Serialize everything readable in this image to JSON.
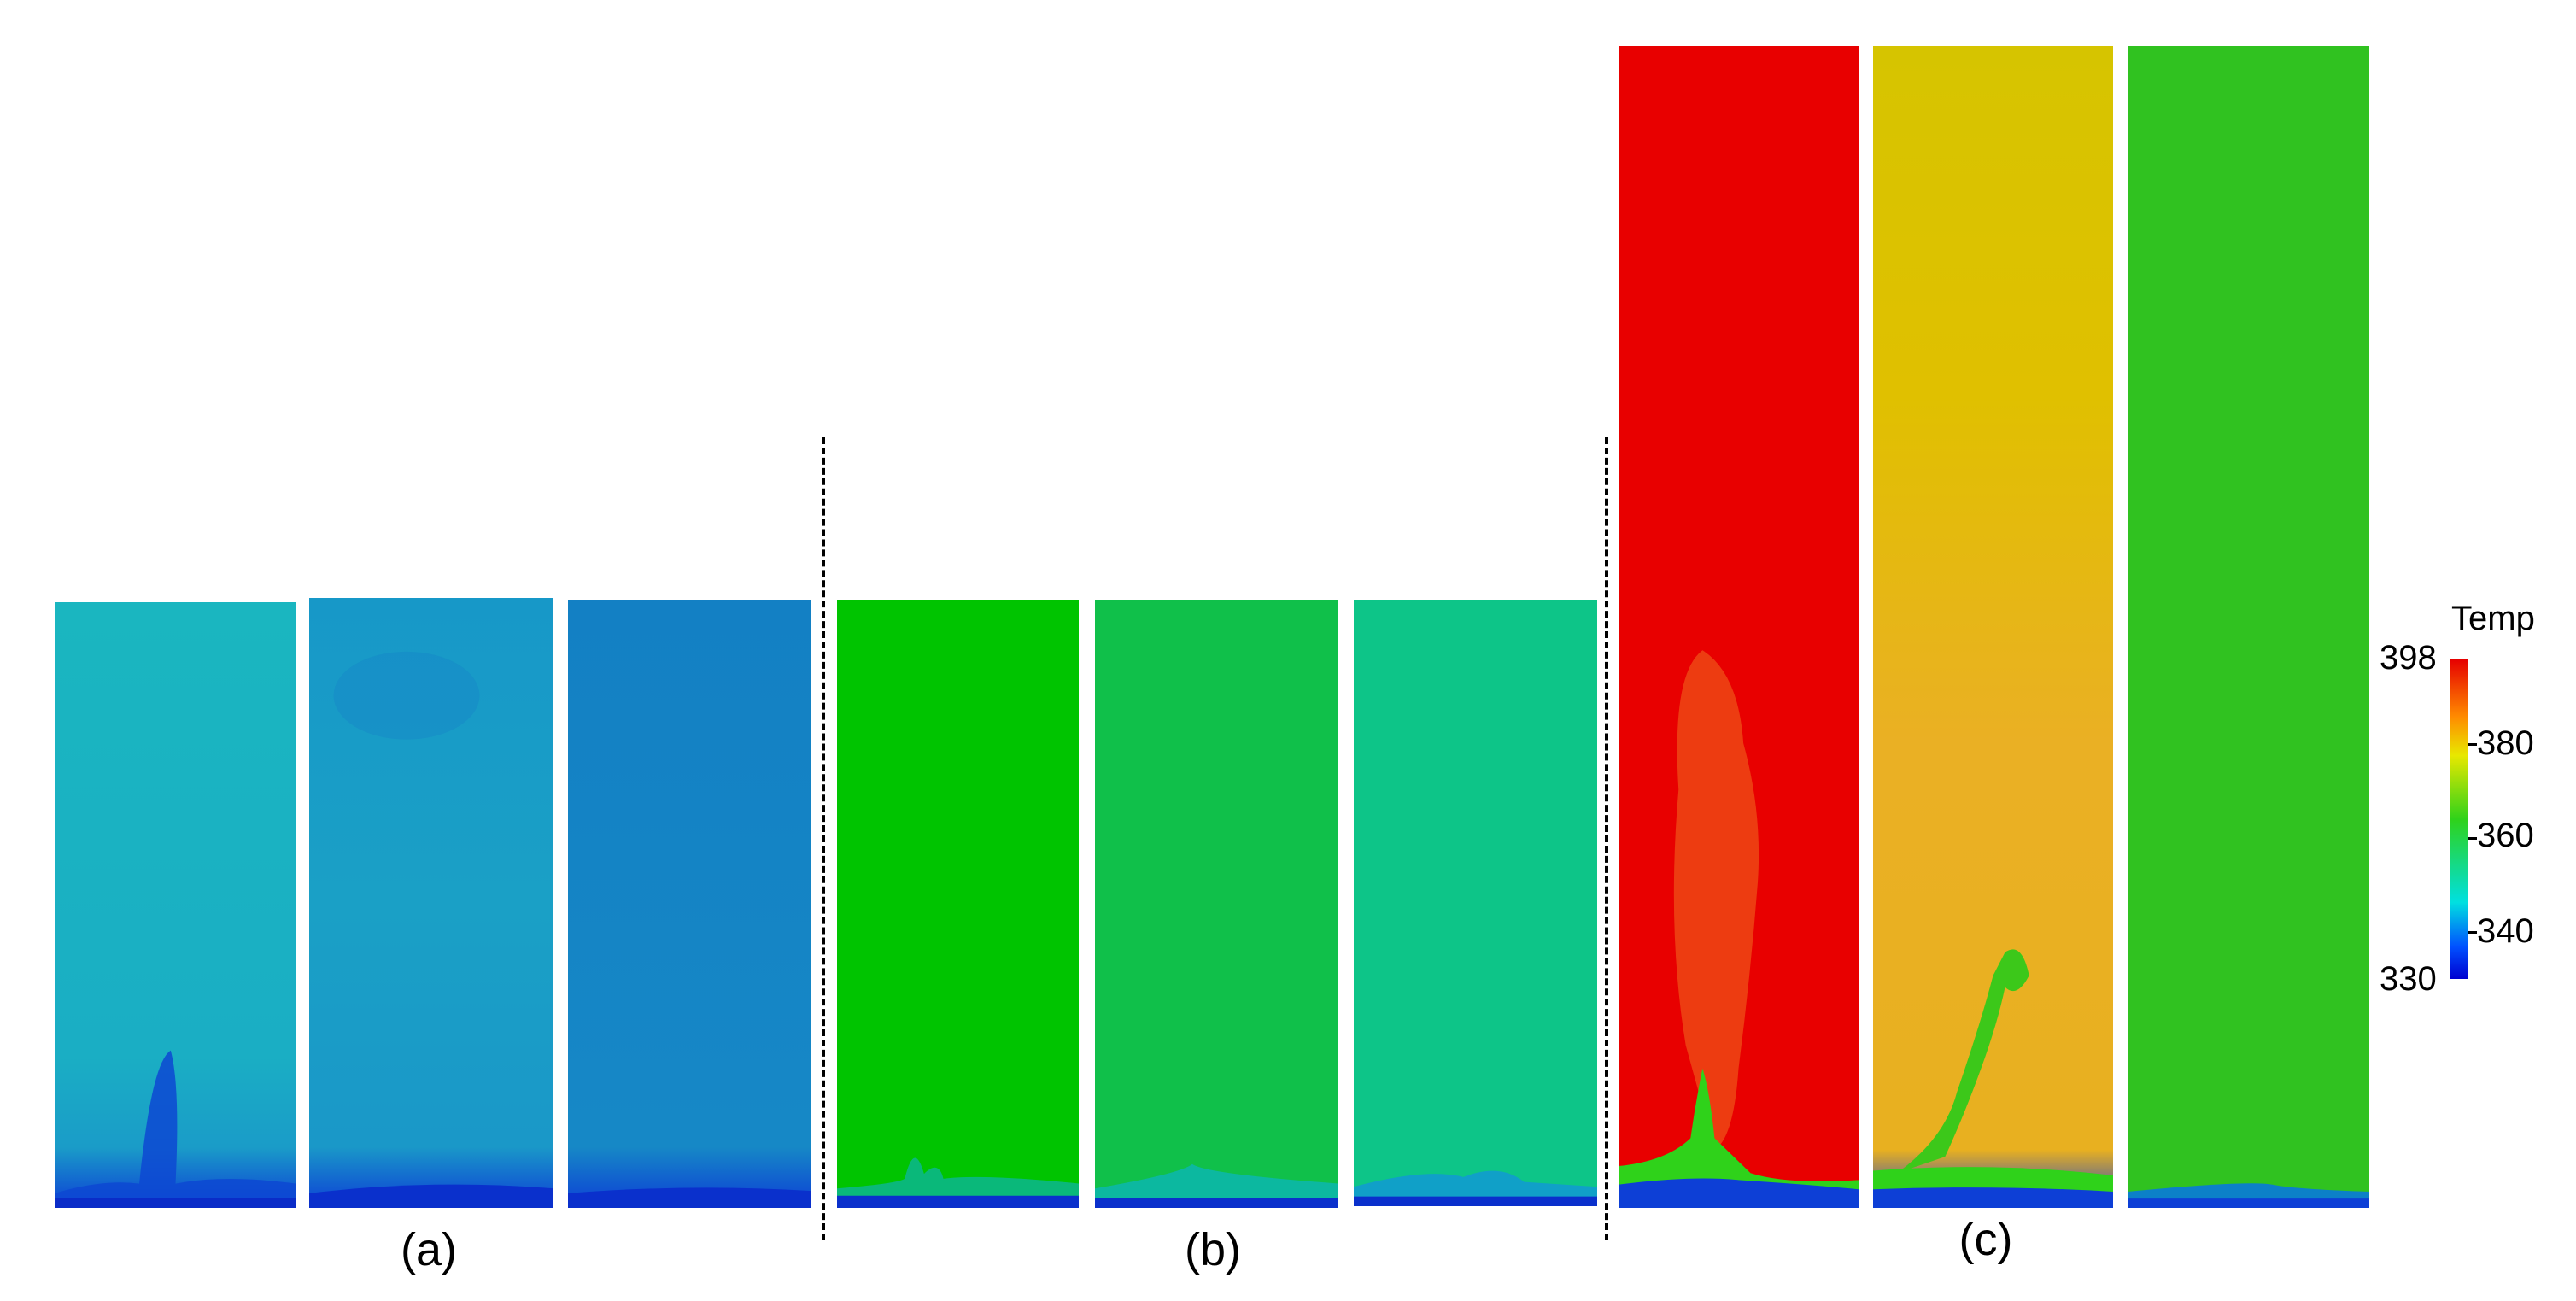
{
  "groups": [
    {
      "label": "(a)"
    },
    {
      "label": "(b)"
    },
    {
      "label": "(c)"
    }
  ],
  "panels": [
    {
      "group": "a",
      "top": "#17b3c2",
      "mid": "#17b0c4",
      "base": "#0d3fd6"
    },
    {
      "group": "a",
      "top": "#1793c9",
      "mid": "#1aa0c6",
      "base": "#0d3fd6"
    },
    {
      "group": "a",
      "top": "#1380c4",
      "mid": "#1588c6",
      "base": "#0d3fd6"
    },
    {
      "group": "b",
      "top": "#00c400",
      "mid": "#00c400",
      "base": "#0d3fd6"
    },
    {
      "group": "b",
      "top": "#10c048",
      "mid": "#12c05a",
      "base": "#0d3fd6"
    },
    {
      "group": "b",
      "top": "#0dc586",
      "mid": "#10c48c",
      "base": "#0d3fd6"
    },
    {
      "group": "c",
      "top": "#e80000",
      "mid": "#e80000",
      "base": "#0d3fd6"
    },
    {
      "group": "c",
      "top": "#d8c400",
      "mid": "#e8b21c",
      "base": "#0d3fd6"
    },
    {
      "group": "c",
      "top": "#2fc21c",
      "mid": "#30c222",
      "base": "#0d3fd6"
    }
  ],
  "colorbar": {
    "title": "Temp",
    "min_label": "398",
    "max_label": "330",
    "ticks": [
      "380",
      "360",
      "340"
    ],
    "colors": [
      "#e60000",
      "#ff8c00",
      "#e8e800",
      "#2fd21a",
      "#00e0e0",
      "#0050ff",
      "#0000d0"
    ]
  }
}
